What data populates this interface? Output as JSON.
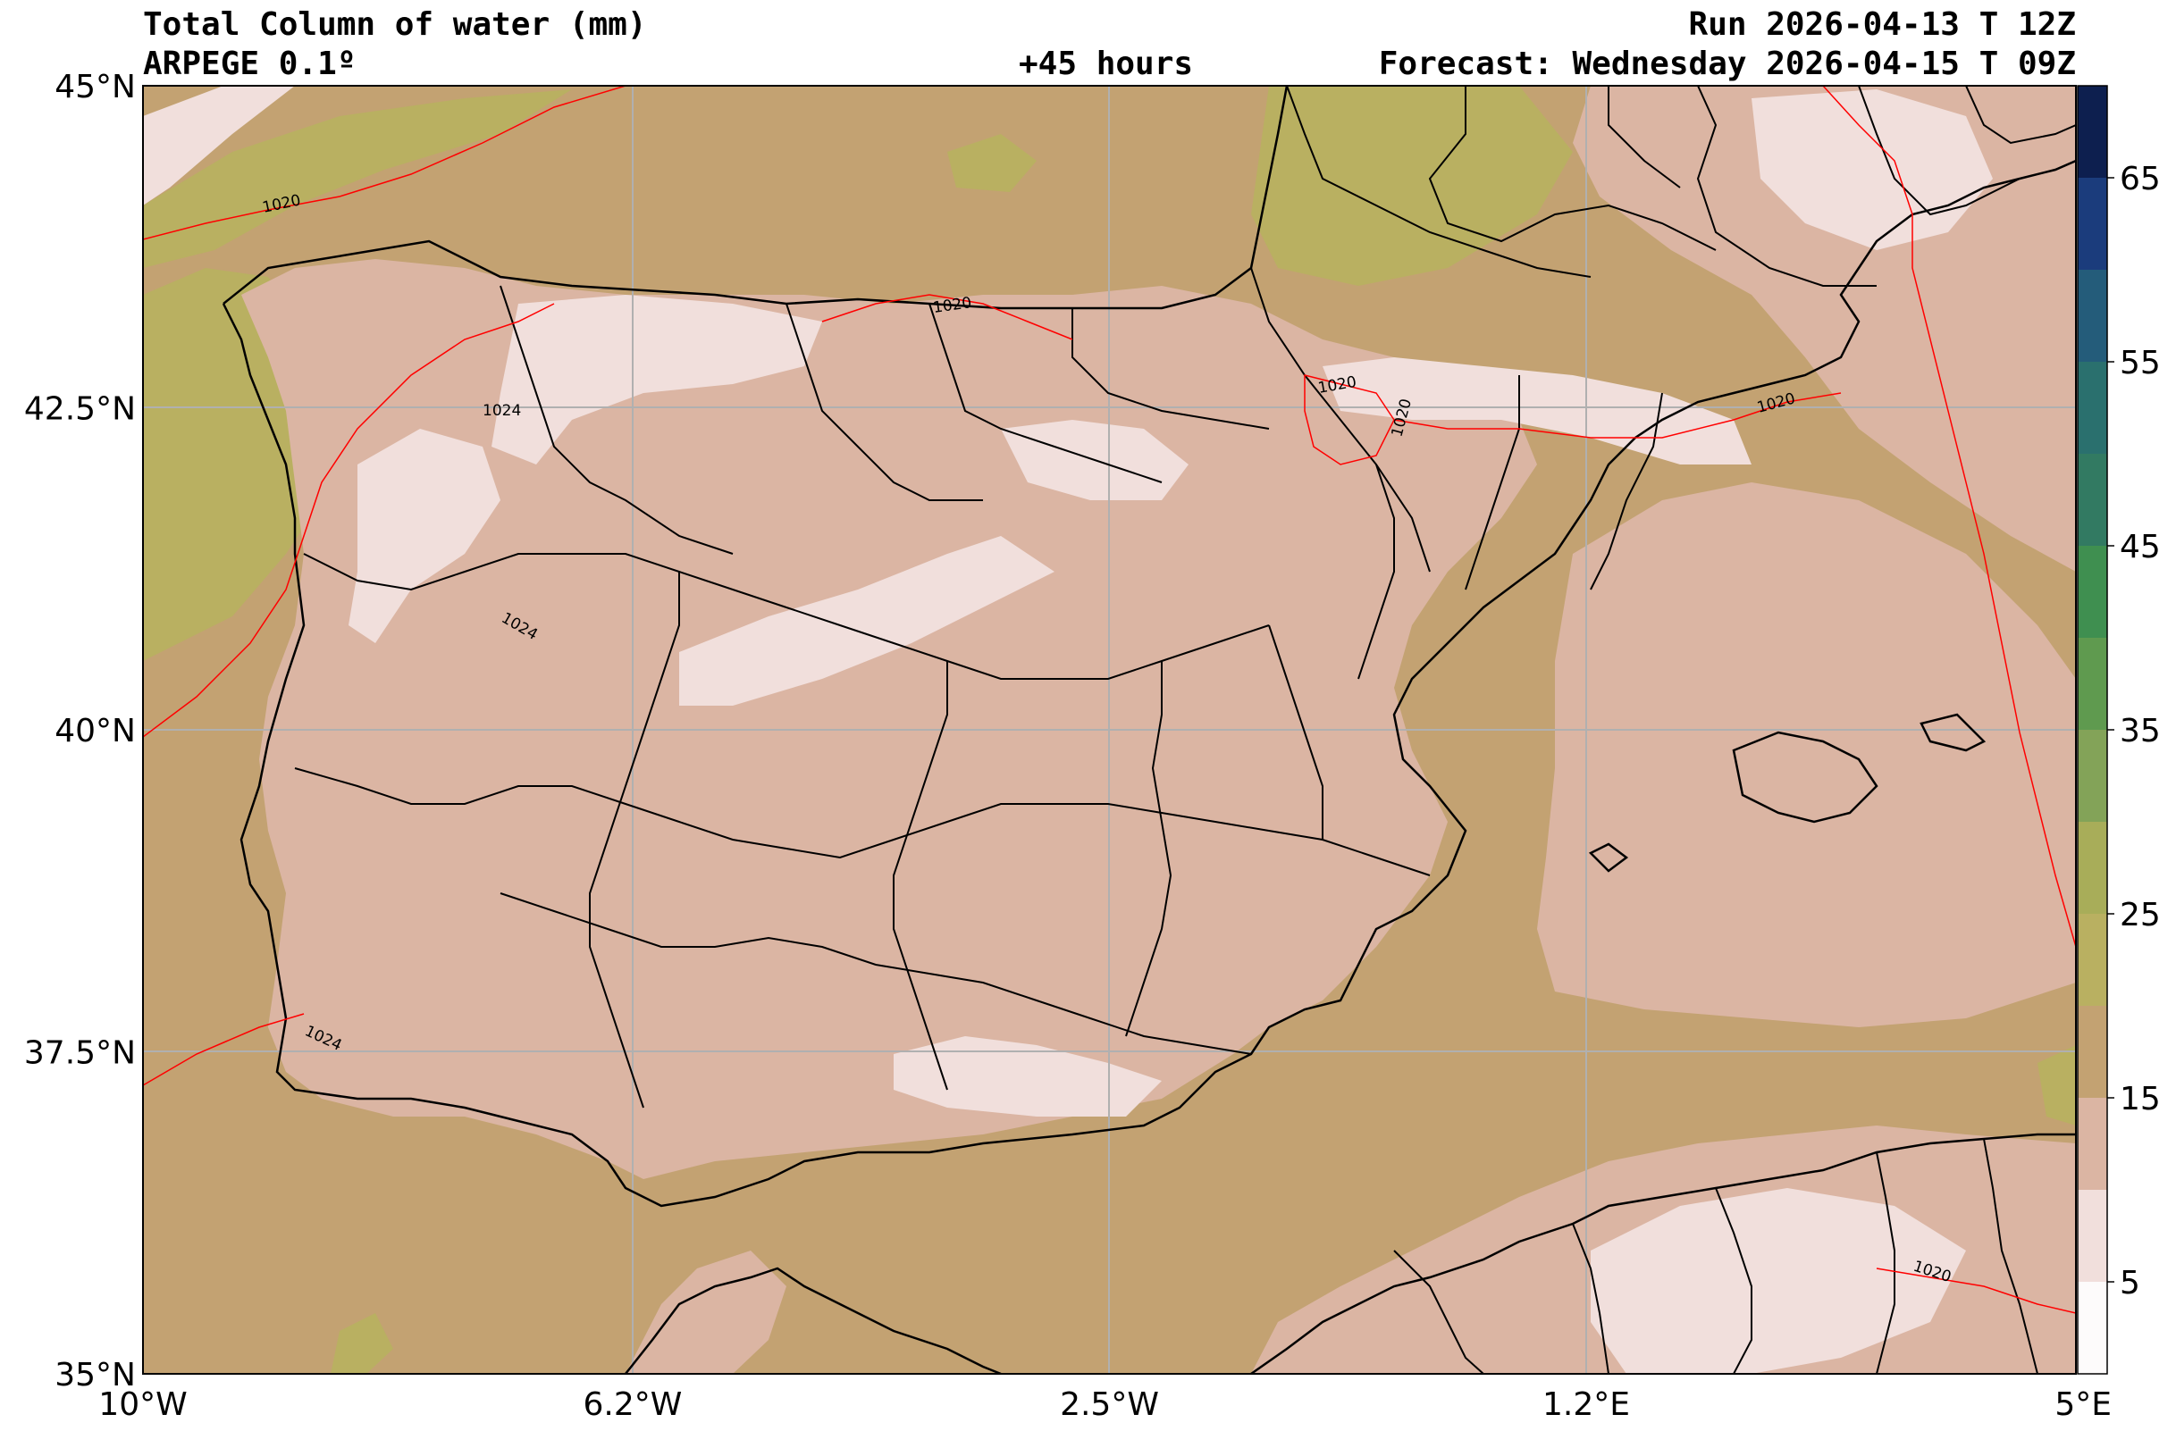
{
  "header": {
    "title": "Total Column of water (mm)",
    "model": "ARPEGE 0.1º",
    "lead": "+45 hours",
    "run": "Run 2026-04-13 T 12Z",
    "forecast": "Forecast: Wednesday 2026-04-15 T 09Z"
  },
  "axes": {
    "lat_ticks": [
      {
        "value": 45,
        "label": "45°N"
      },
      {
        "value": 42.5,
        "label": "42.5°N"
      },
      {
        "value": 40,
        "label": "40°N"
      },
      {
        "value": 37.5,
        "label": "37.5°N"
      },
      {
        "value": 35,
        "label": "35°N"
      }
    ],
    "lon_ticks": [
      {
        "value": -10,
        "label": "10°W"
      },
      {
        "value": -6.2,
        "label": "6.2°W"
      },
      {
        "value": -2.5,
        "label": "2.5°W"
      },
      {
        "value": 1.2,
        "label": "1.2°E"
      },
      {
        "value": 5,
        "label": "5°E"
      }
    ],
    "lat_range": [
      35,
      45
    ],
    "lon_range": [
      -10,
      5
    ],
    "grid": true
  },
  "colorbar": {
    "range": [
      0,
      70
    ],
    "levels": [
      0,
      5,
      10,
      15,
      20,
      25,
      30,
      35,
      40,
      45,
      50,
      55,
      60,
      65,
      70
    ],
    "colors": [
      "#fdfbfb",
      "#f1dfdc",
      "#dbb5a3",
      "#c3a272",
      "#b9b061",
      "#a8ad59",
      "#83a358",
      "#5f9a4f",
      "#3f8f50",
      "#327a62",
      "#2a706e",
      "#245c7a",
      "#1b3c7c",
      "#0d1f4f",
      "#000000"
    ],
    "tick_labels": [
      {
        "value": 5,
        "label": "5"
      },
      {
        "value": 15,
        "label": "15"
      },
      {
        "value": 25,
        "label": "25"
      },
      {
        "value": 35,
        "label": "35"
      },
      {
        "value": 45,
        "label": "45"
      },
      {
        "value": 55,
        "label": "55"
      },
      {
        "value": 65,
        "label": "65"
      }
    ]
  },
  "isobar_labels": [
    "1020",
    "1024"
  ],
  "colors": {
    "ocean": "#c3a272",
    "land_low": "#dbb5a3",
    "land_dry": "#f1dfdc",
    "moist": "#b9b061",
    "isobar": "#ff0000",
    "border": "#000000",
    "grid": "#b0b0b0"
  }
}
